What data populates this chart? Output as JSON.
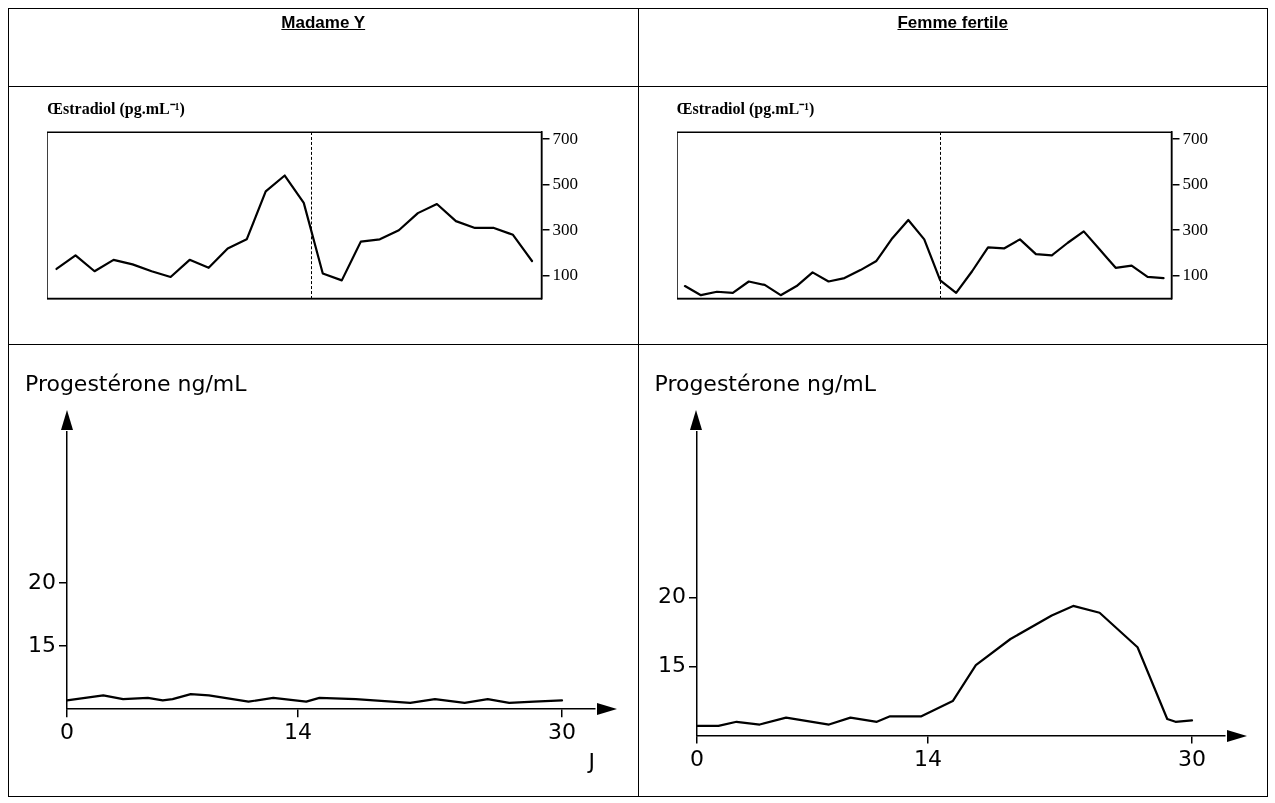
{
  "chart_data": [
    {
      "type": "line",
      "title": "Madame Y",
      "ylabel": "Œstradiol (pg.mL⁻¹)",
      "categories": [
        null,
        null,
        null,
        null,
        null,
        null,
        null,
        null,
        null,
        null,
        null,
        null,
        null,
        null,
        null,
        null,
        null,
        null,
        null,
        null,
        null,
        null,
        null,
        null,
        null,
        null
      ],
      "ylim": [
        0,
        730
      ],
      "yticks": [
        100,
        300,
        500,
        700
      ],
      "line_style": "solid",
      "series": [
        {
          "color": "#000000",
          "values": [
            130,
            190,
            120,
            170,
            150,
            120,
            95,
            170,
            135,
            220,
            260,
            470,
            540,
            420,
            110,
            80,
            250,
            260,
            300,
            375,
            415,
            340,
            310,
            310,
            280,
            165
          ]
        }
      ]
    },
    {
      "type": "line",
      "title": "Femme fertile",
      "ylabel": "Œstradiol (pg.mL⁻¹)",
      "categories": [
        null,
        null,
        null,
        null,
        null,
        null,
        null,
        null,
        null,
        null,
        null,
        null,
        null,
        null,
        null,
        null,
        null,
        null,
        null,
        null,
        null,
        null,
        null,
        null,
        null,
        null,
        null,
        null,
        null,
        null,
        null
      ],
      "ylim": [
        0,
        730
      ],
      "yticks": [
        100,
        300,
        500,
        700
      ],
      "line_style": "solid",
      "series": [
        {
          "color": "#000000",
          "values": [
            55,
            15,
            30,
            25,
            75,
            60,
            15,
            55,
            115,
            75,
            90,
            125,
            165,
            265,
            345,
            260,
            80,
            25,
            120,
            225,
            220,
            260,
            195,
            190,
            245,
            295,
            215,
            135,
            145,
            95,
            90
          ]
        }
      ]
    },
    {
      "type": "line",
      "ylabel": "Progestérone ng/mL",
      "xlabel": "J",
      "xlim": [
        0,
        32
      ],
      "xticks": [
        0,
        14,
        30
      ],
      "ylim": [
        10,
        32
      ],
      "yticks": [
        15,
        20
      ],
      "line_style": "solid",
      "series": [
        {
          "color": "#000000",
          "x": [
            0,
            2.2,
            3.4,
            4.9,
            5.8,
            6.4,
            7.5,
            8.6,
            11,
            12.5,
            14.5,
            15.3,
            17.5,
            20.8,
            22.3,
            24.1,
            25.5,
            26.8,
            28.3,
            30
          ],
          "values": [
            10.7,
            11.1,
            10.8,
            10.9,
            10.7,
            10.8,
            11.2,
            11.1,
            10.6,
            10.9,
            10.6,
            10.9,
            10.8,
            10.5,
            10.8,
            10.5,
            10.8,
            10.5,
            10.6,
            10.7
          ]
        }
      ]
    },
    {
      "type": "line",
      "ylabel": "Progestérone ng/mL",
      "xlim": [
        0,
        32
      ],
      "xticks": [
        0,
        14,
        30
      ],
      "ylim": [
        10,
        32
      ],
      "yticks": [
        15,
        20
      ],
      "line_style": "solid",
      "series": [
        {
          "color": "#000000",
          "x": [
            0,
            1.3,
            2.4,
            3.8,
            5.4,
            8,
            9.3,
            10.9,
            11.7,
            13.6,
            15.5,
            16.9,
            19,
            21.5,
            22.8,
            24.4,
            26.7,
            28.5,
            29,
            30
          ],
          "values": [
            10.7,
            10.7,
            11,
            10.8,
            11.3,
            10.8,
            11.3,
            11,
            11.4,
            11.4,
            12.5,
            15.1,
            17,
            18.7,
            19.4,
            18.9,
            16.4,
            11.2,
            11,
            11.1
          ]
        }
      ]
    }
  ]
}
